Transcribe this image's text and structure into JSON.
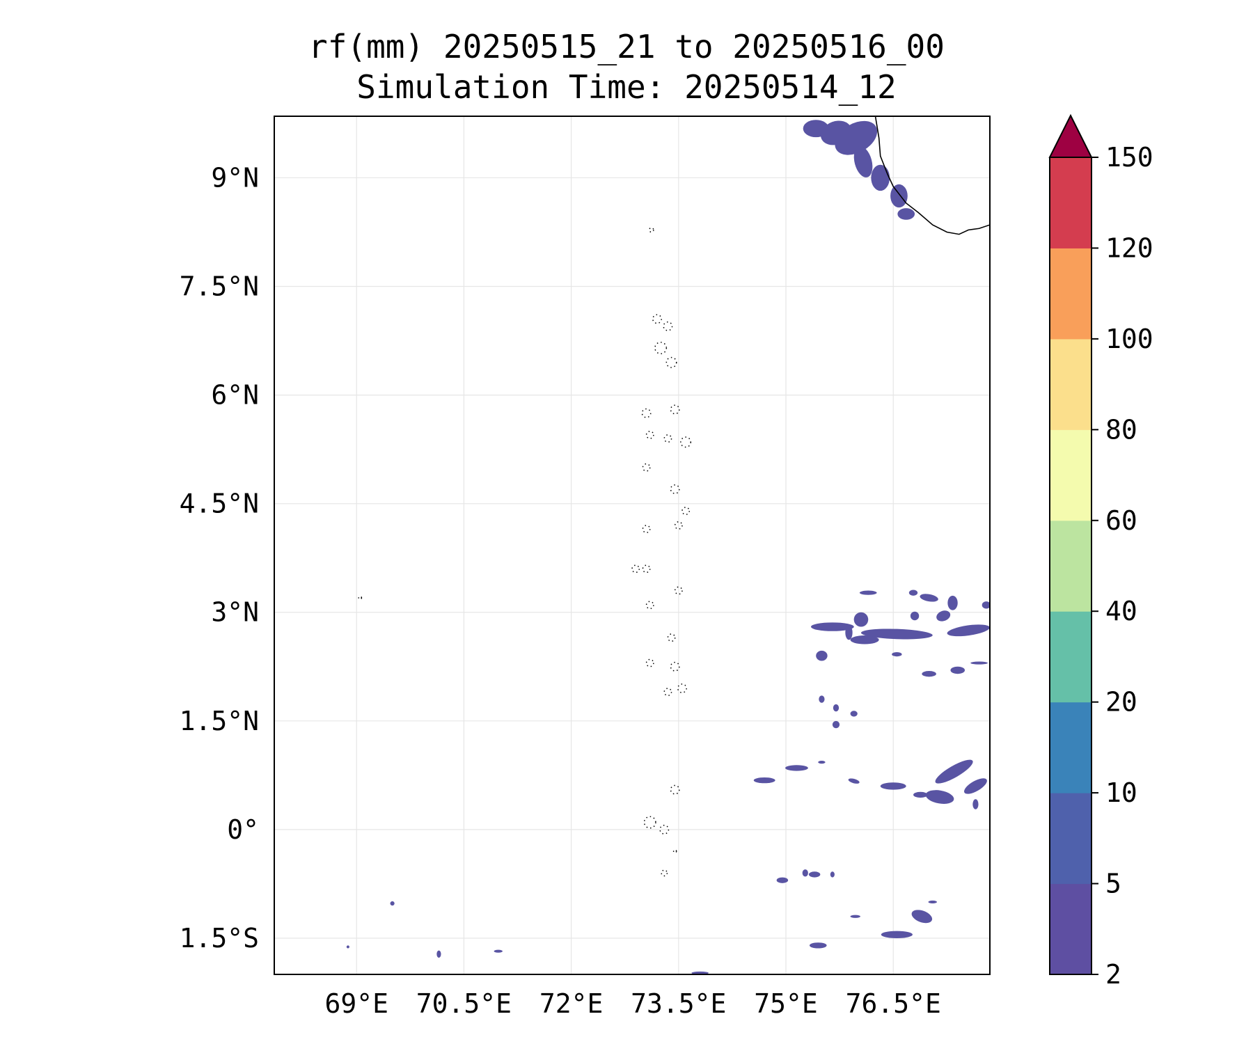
{
  "title": {
    "line1": "rf(mm) 20250515_21 to 20250516_00",
    "line2": "Simulation Time: 20250514_12"
  },
  "map": {
    "extent": {
      "lon_min": 67.85,
      "lon_max": 77.85,
      "lat_min": -2.0,
      "lat_max": 9.85
    },
    "lon_ticks": [
      {
        "value": 69.0,
        "label": "69°E"
      },
      {
        "value": 70.5,
        "label": "70.5°E"
      },
      {
        "value": 72.0,
        "label": "72°E"
      },
      {
        "value": 73.5,
        "label": "73.5°E"
      },
      {
        "value": 75.0,
        "label": "75°E"
      },
      {
        "value": 76.5,
        "label": "76.5°E"
      }
    ],
    "lat_ticks": [
      {
        "value": 9.0,
        "label": "9°N"
      },
      {
        "value": 7.5,
        "label": "7.5°N"
      },
      {
        "value": 6.0,
        "label": "6°N"
      },
      {
        "value": 4.5,
        "label": "4.5°N"
      },
      {
        "value": 3.0,
        "label": "3°N"
      },
      {
        "value": 1.5,
        "label": "1.5°N"
      },
      {
        "value": 0.0,
        "label": "0°"
      },
      {
        "value": -1.5,
        "label": "1.5°S"
      }
    ],
    "grid": true,
    "fill_color": "#5954a3",
    "coastline_color": "#000000"
  },
  "colorbar": {
    "levels": [
      "2",
      "5",
      "10",
      "20",
      "40",
      "60",
      "80",
      "100",
      "120",
      "150"
    ],
    "colors": [
      "#5e4fa2",
      "#4f61ac",
      "#3a83b9",
      "#65c0a8",
      "#bce4a0",
      "#f4fbae",
      "#fbdf8c",
      "#f99f5a",
      "#d43d4f"
    ],
    "extend_color": "#9e0142",
    "extend": "max"
  },
  "rain_patches": [
    {
      "lon": 75.42,
      "lat": 9.68,
      "rx": 0.18,
      "ry": 0.12,
      "rot": 0
    },
    {
      "lon": 75.7,
      "lat": 9.62,
      "rx": 0.22,
      "ry": 0.16,
      "rot": 20
    },
    {
      "lon": 75.98,
      "lat": 9.55,
      "rx": 0.32,
      "ry": 0.2,
      "rot": 30
    },
    {
      "lon": 76.08,
      "lat": 9.22,
      "rx": 0.12,
      "ry": 0.22,
      "rot": 15
    },
    {
      "lon": 76.32,
      "lat": 9.0,
      "rx": 0.13,
      "ry": 0.18,
      "rot": 0
    },
    {
      "lon": 76.58,
      "lat": 8.75,
      "rx": 0.12,
      "ry": 0.16,
      "rot": 0
    },
    {
      "lon": 76.68,
      "lat": 8.5,
      "rx": 0.12,
      "ry": 0.08,
      "rot": 0
    },
    {
      "lon": 76.55,
      "lat": 2.7,
      "rx": 0.5,
      "ry": 0.07,
      "rot": -2
    },
    {
      "lon": 76.1,
      "lat": 2.62,
      "rx": 0.2,
      "ry": 0.06,
      "rot": 0
    },
    {
      "lon": 76.05,
      "lat": 2.9,
      "rx": 0.1,
      "ry": 0.1,
      "rot": 0
    },
    {
      "lon": 75.65,
      "lat": 2.8,
      "rx": 0.3,
      "ry": 0.06,
      "rot": 0
    },
    {
      "lon": 75.88,
      "lat": 2.72,
      "rx": 0.05,
      "ry": 0.1,
      "rot": 0
    },
    {
      "lon": 77.55,
      "lat": 2.75,
      "rx": 0.3,
      "ry": 0.07,
      "rot": 8
    },
    {
      "lon": 77.2,
      "lat": 2.95,
      "rx": 0.1,
      "ry": 0.07,
      "rot": 20
    },
    {
      "lon": 77.0,
      "lat": 3.2,
      "rx": 0.13,
      "ry": 0.05,
      "rot": -10
    },
    {
      "lon": 77.33,
      "lat": 3.13,
      "rx": 0.07,
      "ry": 0.1,
      "rot": 0
    },
    {
      "lon": 77.8,
      "lat": 3.1,
      "rx": 0.06,
      "ry": 0.05,
      "rot": 0
    },
    {
      "lon": 76.78,
      "lat": 3.27,
      "rx": 0.06,
      "ry": 0.04,
      "rot": 0
    },
    {
      "lon": 76.15,
      "lat": 3.27,
      "rx": 0.12,
      "ry": 0.03,
      "rot": 0
    },
    {
      "lon": 76.8,
      "lat": 2.95,
      "rx": 0.06,
      "ry": 0.06,
      "rot": 0
    },
    {
      "lon": 75.5,
      "lat": 2.4,
      "rx": 0.08,
      "ry": 0.07,
      "rot": 0
    },
    {
      "lon": 77.0,
      "lat": 2.15,
      "rx": 0.1,
      "ry": 0.04,
      "rot": 0
    },
    {
      "lon": 76.55,
      "lat": 2.42,
      "rx": 0.07,
      "ry": 0.03,
      "rot": 0
    },
    {
      "lon": 77.4,
      "lat": 2.2,
      "rx": 0.1,
      "ry": 0.05,
      "rot": 0
    },
    {
      "lon": 77.7,
      "lat": 2.3,
      "rx": 0.12,
      "ry": 0.02,
      "rot": 0
    },
    {
      "lon": 75.5,
      "lat": 1.8,
      "rx": 0.04,
      "ry": 0.05,
      "rot": 0
    },
    {
      "lon": 75.7,
      "lat": 1.68,
      "rx": 0.04,
      "ry": 0.05,
      "rot": 0
    },
    {
      "lon": 75.95,
      "lat": 1.6,
      "rx": 0.05,
      "ry": 0.04,
      "rot": 0
    },
    {
      "lon": 75.7,
      "lat": 1.45,
      "rx": 0.05,
      "ry": 0.05,
      "rot": 0
    },
    {
      "lon": 77.35,
      "lat": 0.8,
      "rx": 0.3,
      "ry": 0.08,
      "rot": 30
    },
    {
      "lon": 77.65,
      "lat": 0.6,
      "rx": 0.18,
      "ry": 0.07,
      "rot": 30
    },
    {
      "lon": 77.15,
      "lat": 0.45,
      "rx": 0.2,
      "ry": 0.09,
      "rot": -10
    },
    {
      "lon": 76.5,
      "lat": 0.6,
      "rx": 0.18,
      "ry": 0.05,
      "rot": 0
    },
    {
      "lon": 76.88,
      "lat": 0.48,
      "rx": 0.1,
      "ry": 0.04,
      "rot": 0
    },
    {
      "lon": 75.15,
      "lat": 0.85,
      "rx": 0.16,
      "ry": 0.04,
      "rot": 0
    },
    {
      "lon": 74.7,
      "lat": 0.68,
      "rx": 0.15,
      "ry": 0.04,
      "rot": 0
    },
    {
      "lon": 75.95,
      "lat": 0.67,
      "rx": 0.08,
      "ry": 0.03,
      "rot": -15
    },
    {
      "lon": 75.5,
      "lat": 0.93,
      "rx": 0.05,
      "ry": 0.02,
      "rot": 0
    },
    {
      "lon": 77.65,
      "lat": 0.35,
      "rx": 0.04,
      "ry": 0.07,
      "rot": 0
    },
    {
      "lon": 74.95,
      "lat": -0.7,
      "rx": 0.08,
      "ry": 0.04,
      "rot": 0
    },
    {
      "lon": 75.4,
      "lat": -0.62,
      "rx": 0.08,
      "ry": 0.04,
      "rot": 0
    },
    {
      "lon": 75.27,
      "lat": -0.6,
      "rx": 0.04,
      "ry": 0.05,
      "rot": 0
    },
    {
      "lon": 75.65,
      "lat": -0.62,
      "rx": 0.03,
      "ry": 0.04,
      "rot": 0
    },
    {
      "lon": 76.9,
      "lat": -1.2,
      "rx": 0.15,
      "ry": 0.08,
      "rot": -20
    },
    {
      "lon": 76.55,
      "lat": -1.45,
      "rx": 0.22,
      "ry": 0.05,
      "rot": 0
    },
    {
      "lon": 75.45,
      "lat": -1.6,
      "rx": 0.12,
      "ry": 0.04,
      "rot": 0
    },
    {
      "lon": 75.97,
      "lat": -1.2,
      "rx": 0.07,
      "ry": 0.02,
      "rot": 0
    },
    {
      "lon": 77.05,
      "lat": -1.0,
      "rx": 0.06,
      "ry": 0.02,
      "rot": 0
    },
    {
      "lon": 69.5,
      "lat": -1.02,
      "rx": 0.03,
      "ry": 0.03,
      "rot": 0
    },
    {
      "lon": 70.15,
      "lat": -1.72,
      "rx": 0.03,
      "ry": 0.05,
      "rot": 0
    },
    {
      "lon": 70.98,
      "lat": -1.68,
      "rx": 0.06,
      "ry": 0.02,
      "rot": 0
    },
    {
      "lon": 73.8,
      "lat": -1.98,
      "rx": 0.12,
      "ry": 0.02,
      "rot": 0
    },
    {
      "lon": 68.88,
      "lat": -1.62,
      "rx": 0.02,
      "ry": 0.02,
      "rot": 0
    }
  ]
}
